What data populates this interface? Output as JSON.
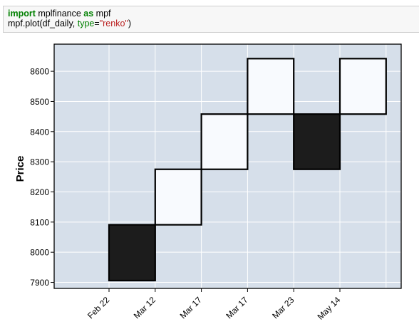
{
  "code": {
    "line1": {
      "kw1": "import",
      "mid": " mplfinance ",
      "kw2": "as",
      "end": " mpf"
    },
    "line2": {
      "pre": "mpf.plot(df_daily, ",
      "kwarg": "type",
      "eq": "=",
      "str": "\"renko\"",
      "post": ")"
    }
  },
  "colors": {
    "plot_background": "#d6dfea",
    "grid": "#ffffff",
    "up_brick": "#f8fafe",
    "down_brick": "#1c1c1c",
    "brick_edge": "#000000"
  },
  "chart_data": {
    "type": "renko",
    "ylabel": "Price",
    "ylim": [
      7880,
      8690
    ],
    "yticks": [
      7900,
      8000,
      8100,
      8200,
      8300,
      8400,
      8500,
      8600
    ],
    "ytick_labels": [
      "7900",
      "8000",
      "8100",
      "8200",
      "8300",
      "8400",
      "8500",
      "8600"
    ],
    "xtick_labels": [
      "Feb 22",
      "Mar 12",
      "Mar 17",
      "Mar 17",
      "Mar 23",
      "May 14"
    ],
    "grid": true,
    "bricks": [
      {
        "direction": "down",
        "low": 7906,
        "high": 8091
      },
      {
        "direction": "up",
        "low": 8091,
        "high": 8275
      },
      {
        "direction": "up",
        "low": 8275,
        "high": 8458
      },
      {
        "direction": "up",
        "low": 8458,
        "high": 8642
      },
      {
        "direction": "down",
        "low": 8275,
        "high": 8458
      },
      {
        "direction": "up",
        "low": 8458,
        "high": 8642
      }
    ]
  }
}
